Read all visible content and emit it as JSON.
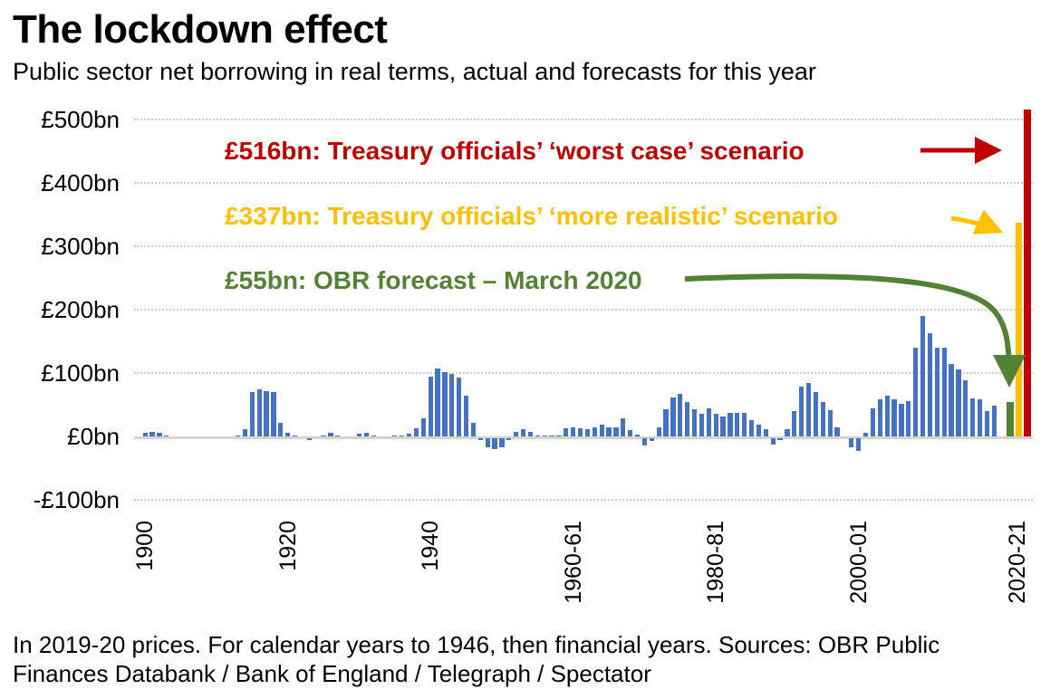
{
  "title": "The lockdown effect",
  "subtitle": "Public sector net borrowing in real terms, actual and forecasts for this year",
  "footer": "In 2019-20 prices. For calendar years to 1946, then financial years. Sources: OBR Public Finances Databank / Bank of England / Telegraph / Spectator",
  "annotations": [
    {
      "label": "£516bn: Treasury officials’ ‘worst case’ scenario",
      "value": 516,
      "color": "#c00000"
    },
    {
      "label": "£337bn: Treasury officials’ ‘more realistic’ scenario",
      "value": 337,
      "color": "#ffc000"
    },
    {
      "label": "£55bn: OBR forecast – March 2020",
      "value": 55,
      "color": "#548235"
    }
  ],
  "colors": {
    "actual_bar": "#4472c4",
    "worst_case_bar": "#c00000",
    "realistic_bar": "#ffc000",
    "obr_bar": "#548235",
    "gridline": "#cdcdcd",
    "axis_line": "#d4d4d4",
    "text": "#000000"
  },
  "chart_data": {
    "type": "bar",
    "title": "The lockdown effect",
    "subtitle": "Public sector net borrowing in real terms, actual and forecasts for this year",
    "xlabel": "",
    "ylabel": "£bn (2019-20 prices)",
    "ylim": [
      -100,
      500
    ],
    "grid": "horizontal-dotted",
    "yticks": [
      {
        "value": 500,
        "label": "£500bn"
      },
      {
        "value": 400,
        "label": "£400bn"
      },
      {
        "value": 300,
        "label": "£300bn"
      },
      {
        "value": 200,
        "label": "£200bn"
      },
      {
        "value": 100,
        "label": "£100bn"
      },
      {
        "value": 0,
        "label": "£0bn"
      },
      {
        "value": -100,
        "label": "-£100bn"
      }
    ],
    "xticks": [
      {
        "year": 1900,
        "label": "1900"
      },
      {
        "year": 1920,
        "label": "1920"
      },
      {
        "year": 1940,
        "label": "1940"
      },
      {
        "year": 1960,
        "label": "1960-61"
      },
      {
        "year": 1980,
        "label": "1980-81"
      },
      {
        "year": 2000,
        "label": "2000-01"
      },
      {
        "year": 2020,
        "label": "2020-21"
      }
    ],
    "series": [
      {
        "name": "Actual public sector net borrowing",
        "first_year": 1900,
        "last_year": 2019,
        "values": [
          6,
          7,
          6,
          2,
          0,
          0,
          0,
          0,
          0,
          0,
          0,
          0,
          0,
          1,
          12,
          70,
          74,
          72,
          70,
          22,
          6,
          2,
          0,
          -3,
          0,
          1,
          6,
          2,
          0,
          0,
          5,
          6,
          1,
          0,
          0,
          1,
          2,
          5,
          13,
          28,
          95,
          107,
          102,
          98,
          93,
          64,
          22,
          -1,
          -14,
          -17,
          -14,
          -1,
          7,
          12,
          7,
          1,
          1,
          1,
          2,
          13,
          14,
          13,
          12,
          14,
          18,
          14,
          15,
          29,
          10,
          3,
          -12,
          -4,
          14,
          43,
          62,
          67,
          55,
          43,
          36,
          45,
          36,
          31,
          37,
          37,
          37,
          26,
          19,
          12,
          -10,
          -3,
          12,
          40,
          79,
          85,
          70,
          55,
          42,
          14,
          0,
          -14,
          -20,
          6,
          45,
          58,
          64,
          58,
          51,
          56,
          140,
          190,
          163,
          140,
          140,
          115,
          106,
          88,
          60,
          59,
          40,
          49
        ]
      }
    ],
    "forecasts_2020_21": [
      {
        "name": "OBR forecast – March 2020",
        "value": 55,
        "color": "#548235"
      },
      {
        "name": "Treasury officials’ ‘more realistic’ scenario",
        "value": 337,
        "color": "#ffc000"
      },
      {
        "name": "Treasury officials’ ‘worst case’ scenario",
        "value": 516,
        "color": "#c00000"
      }
    ]
  }
}
